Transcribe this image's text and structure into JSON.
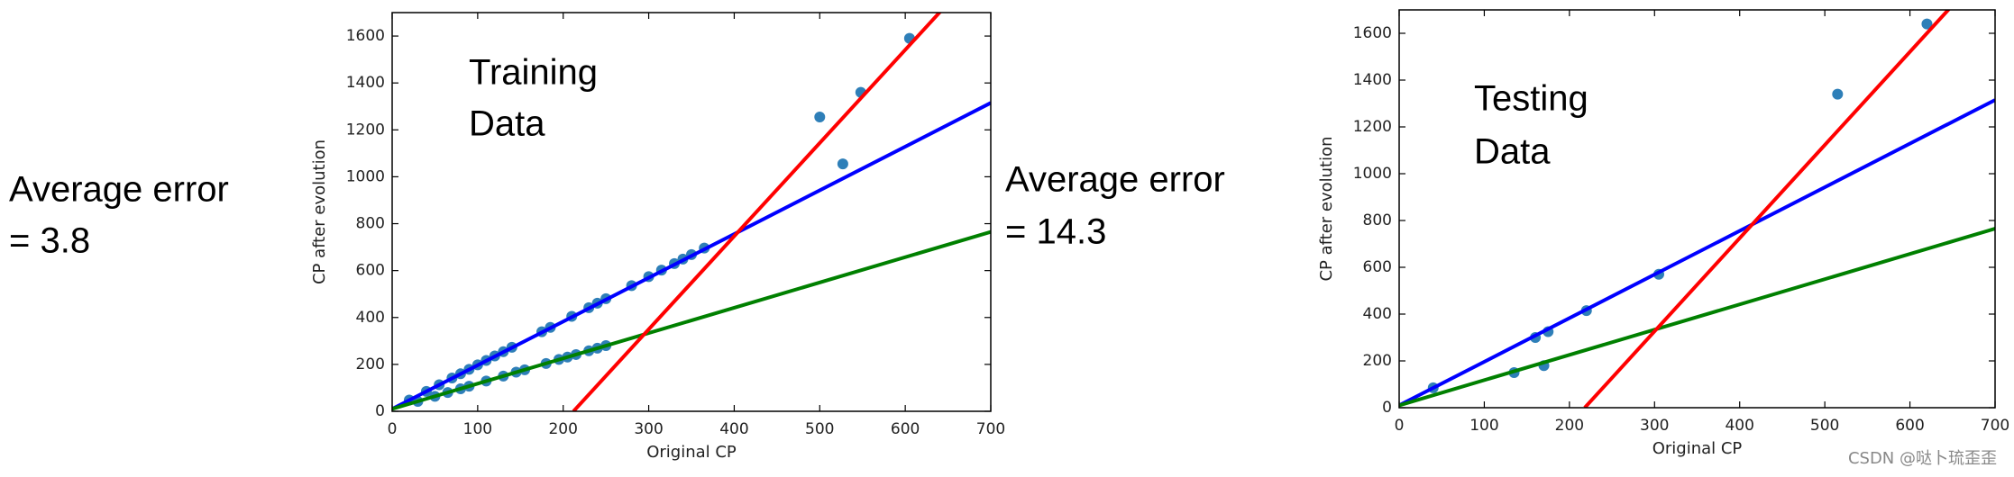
{
  "watermark": "CSDN @哒卜琉歪歪",
  "chart_data": [
    {
      "type": "scatter",
      "error_note": [
        "Average error",
        "= 3.8"
      ],
      "annotation": [
        "Training",
        "Data"
      ],
      "xlabel": "Original CP",
      "ylabel": "CP after evolution",
      "xlim": [
        0,
        700
      ],
      "ylim": [
        0,
        1700
      ],
      "xticks": [
        0,
        100,
        200,
        300,
        400,
        500,
        600,
        700
      ],
      "yticks": [
        0,
        200,
        400,
        600,
        800,
        1000,
        1200,
        1400,
        1600
      ],
      "series": [
        {
          "type": "scatter",
          "color": "#2e7fb8",
          "x": [
            20,
            40,
            55,
            70,
            80,
            90,
            100,
            110,
            120,
            130,
            140,
            175,
            185,
            210,
            230,
            240,
            250,
            280,
            300,
            315,
            330,
            340,
            350,
            365,
            30,
            50,
            65,
            80,
            90,
            110,
            130,
            145,
            155,
            180,
            195,
            205,
            215,
            230,
            240,
            250,
            500,
            527,
            548,
            605
          ],
          "values": [
            48,
            85,
            113,
            142,
            160,
            179,
            198,
            217,
            236,
            254,
            273,
            339,
            358,
            405,
            442,
            461,
            480,
            536,
            574,
            602,
            630,
            649,
            668,
            696,
            42,
            64,
            80,
            96,
            107,
            129,
            150,
            167,
            177,
            204,
            221,
            231,
            242,
            258,
            269,
            280,
            1255,
            1055,
            1360,
            1590
          ]
        },
        {
          "type": "line",
          "color": "#0000ff",
          "x": [
            0,
            700
          ],
          "values": [
            10,
            1315
          ]
        },
        {
          "type": "line",
          "color": "#008000",
          "x": [
            0,
            700
          ],
          "values": [
            10,
            765
          ]
        },
        {
          "type": "line",
          "color": "#ff0000",
          "x": [
            212,
            645
          ],
          "values": [
            0,
            1720
          ]
        }
      ]
    },
    {
      "type": "scatter",
      "error_note": [
        "Average error",
        "= 14.3"
      ],
      "annotation": [
        "Testing",
        "Data"
      ],
      "xlabel": "Original CP",
      "ylabel": "CP after evolution",
      "xlim": [
        0,
        700
      ],
      "ylim": [
        0,
        1700
      ],
      "xticks": [
        0,
        100,
        200,
        300,
        400,
        500,
        600,
        700
      ],
      "yticks": [
        0,
        200,
        400,
        600,
        800,
        1000,
        1200,
        1400,
        1600
      ],
      "series": [
        {
          "type": "scatter",
          "color": "#2e7fb8",
          "x": [
            40,
            135,
            160,
            170,
            175,
            220,
            305,
            515,
            620
          ],
          "values": [
            85,
            150,
            300,
            180,
            325,
            415,
            570,
            1340,
            1640
          ]
        },
        {
          "type": "line",
          "color": "#0000ff",
          "x": [
            0,
            700
          ],
          "values": [
            10,
            1315
          ]
        },
        {
          "type": "line",
          "color": "#008000",
          "x": [
            0,
            700
          ],
          "values": [
            10,
            765
          ]
        },
        {
          "type": "line",
          "color": "#ff0000",
          "x": [
            218,
            650
          ],
          "values": [
            0,
            1720
          ]
        }
      ]
    }
  ]
}
